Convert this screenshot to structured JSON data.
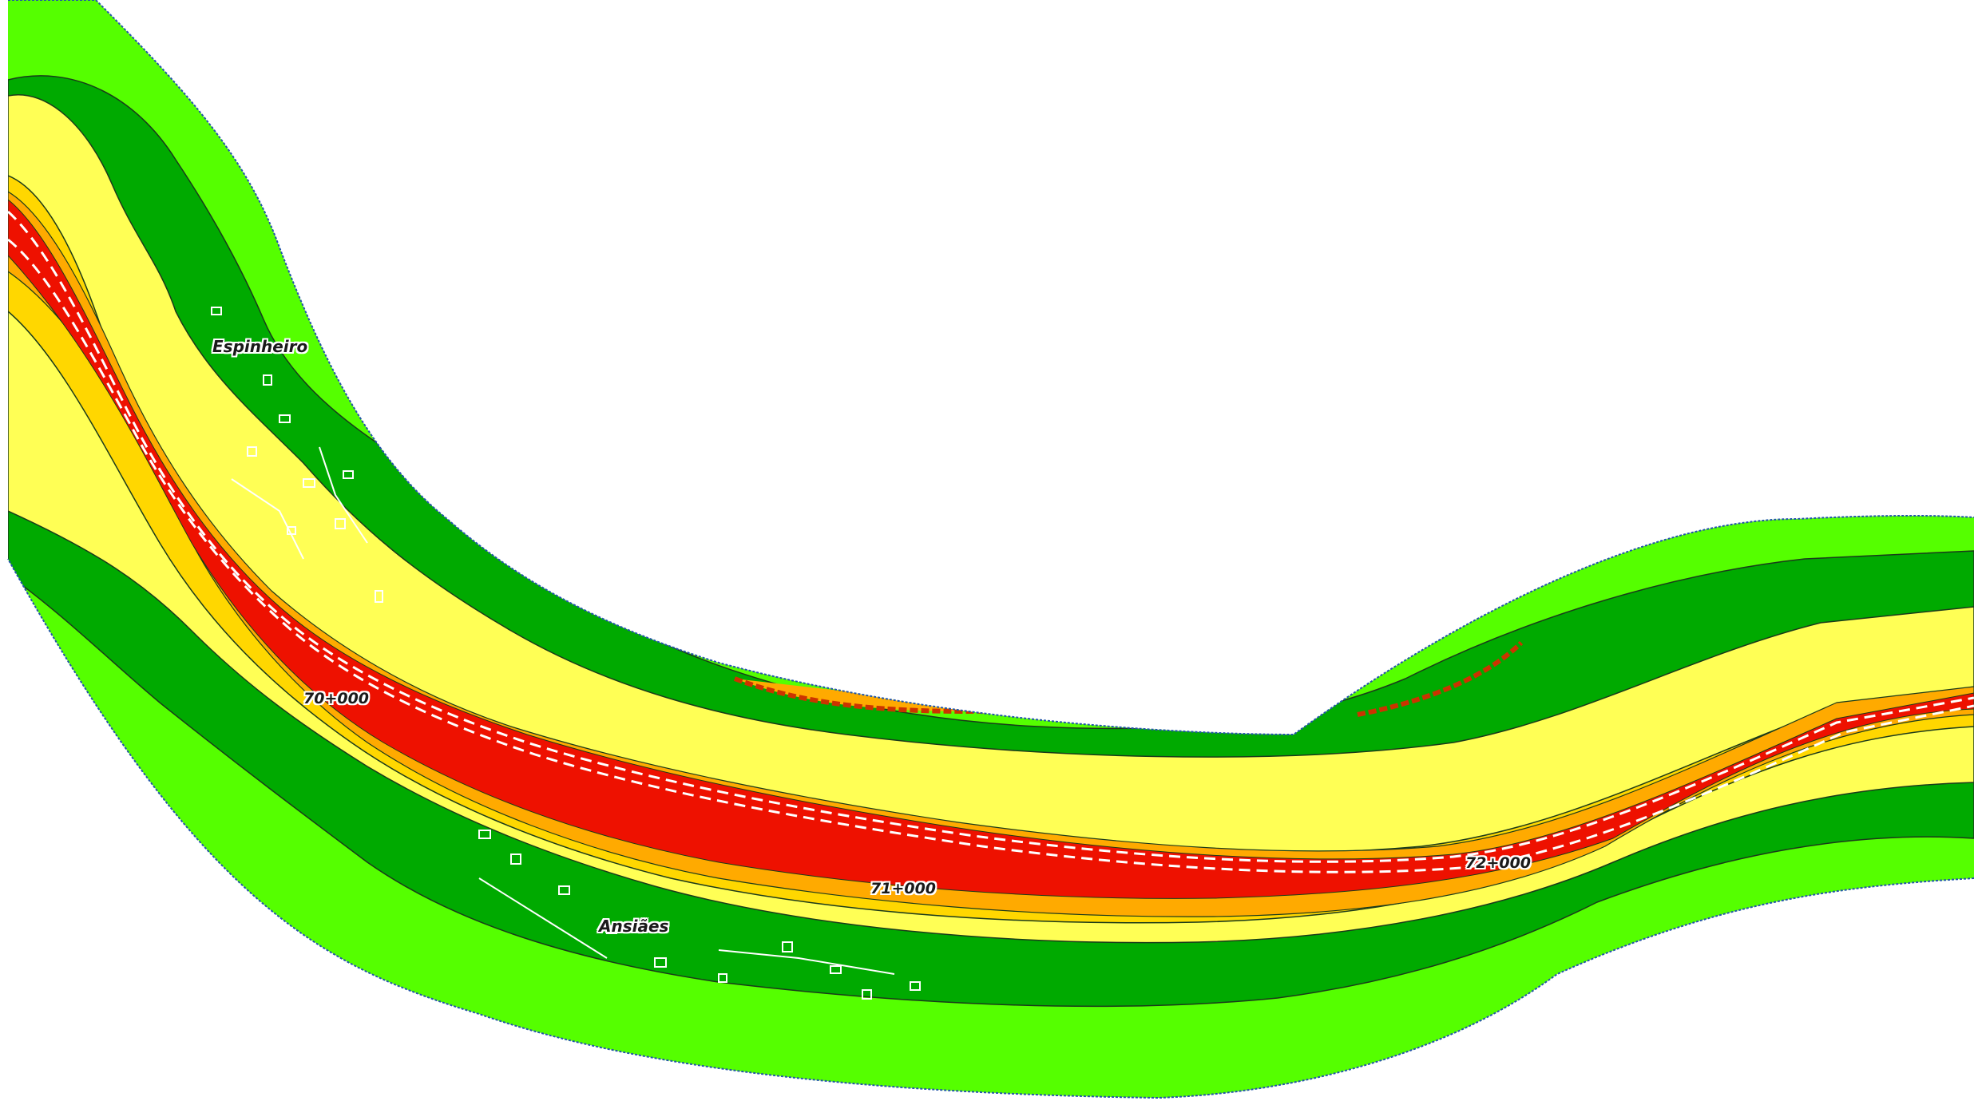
{
  "places": [
    {
      "id": "espinheiro",
      "name": "Espinheiro"
    },
    {
      "id": "ansiaes",
      "name": "Ansiães"
    }
  ],
  "chainage": [
    {
      "id": "km70",
      "label": "70+000"
    },
    {
      "id": "km71",
      "label": "71+000"
    },
    {
      "id": "km72",
      "label": "72+000"
    }
  ],
  "colors": {
    "zone_light_green": "#55FF00",
    "zone_dark_green": "#00AA00",
    "zone_yellow": "#FFFF55",
    "zone_gold": "#FFD700",
    "zone_orange": "#FFAA00",
    "zone_red": "#EE1100",
    "corridor_border": "#2255aa",
    "road_marking": "#ffffff"
  }
}
